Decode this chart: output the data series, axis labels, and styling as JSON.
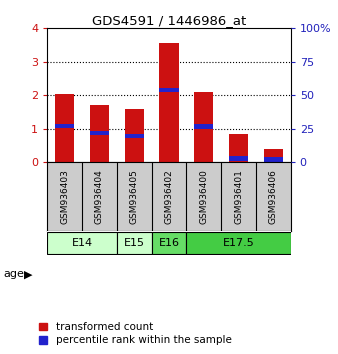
{
  "title": "GDS4591 / 1446986_at",
  "samples": [
    "GSM936403",
    "GSM936404",
    "GSM936405",
    "GSM936402",
    "GSM936400",
    "GSM936401",
    "GSM936406"
  ],
  "red_values": [
    2.05,
    1.7,
    1.6,
    3.55,
    2.1,
    0.85,
    0.4
  ],
  "blue_values": [
    1.08,
    0.88,
    0.79,
    2.15,
    1.07,
    0.11,
    0.08
  ],
  "ylim_left": [
    0,
    4
  ],
  "ylim_right": [
    0,
    100
  ],
  "yticks_left": [
    0,
    1,
    2,
    3,
    4
  ],
  "yticks_right": [
    0,
    25,
    50,
    75,
    100
  ],
  "age_groups": [
    {
      "label": "E14",
      "start": 0,
      "end": 2,
      "color": "#ccffcc"
    },
    {
      "label": "E15",
      "start": 2,
      "end": 3,
      "color": "#ccffcc"
    },
    {
      "label": "E16",
      "start": 3,
      "end": 4,
      "color": "#66dd66"
    },
    {
      "label": "E17.5",
      "start": 4,
      "end": 7,
      "color": "#44cc44"
    }
  ],
  "bar_color": "#cc1111",
  "marker_color": "#2222cc",
  "bar_width": 0.55,
  "bg_color": "#ffffff",
  "sample_bg_color": "#cccccc",
  "legend_labels": [
    "transformed count",
    "percentile rank within the sample"
  ],
  "left_tick_color": "#cc1111",
  "right_tick_color": "#2222bb"
}
